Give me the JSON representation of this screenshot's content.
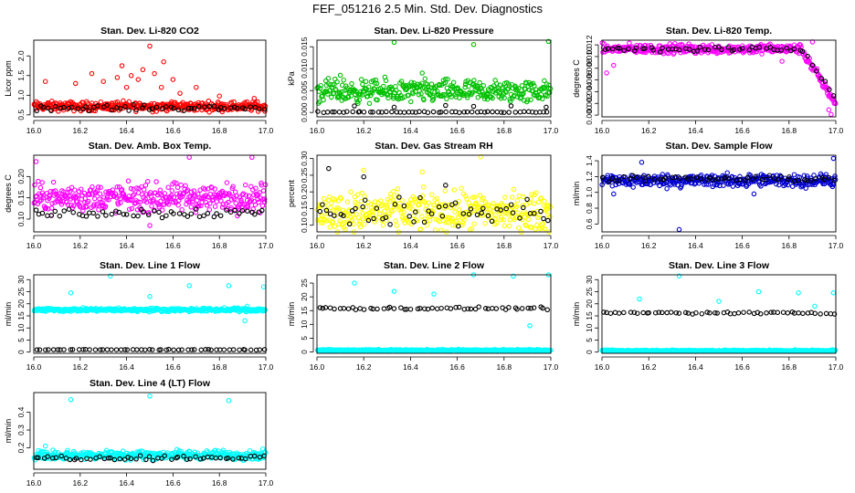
{
  "figure": {
    "title": "FEF_051216  2.5 Min. Std. Dev. Diagnostics"
  },
  "chart_data": [
    {
      "type": "scatter",
      "title": "Stan. Dev. Li-820 CO2",
      "xlabel": "",
      "ylabel": "Licor ppm",
      "xlim": [
        16.0,
        17.0
      ],
      "ylim": [
        0.45,
        2.4
      ],
      "xticks": [
        16.0,
        16.2,
        16.4,
        16.6,
        16.8,
        17.0
      ],
      "yticks": [
        0.5,
        1.0,
        1.5,
        2.0
      ],
      "series": [
        {
          "name": "colored",
          "color": "#ff0000",
          "base": 0.72,
          "spread": 0.1,
          "bias": 0.0,
          "outliers": [
            [
              16.05,
              1.35
            ],
            [
              16.18,
              1.3
            ],
            [
              16.25,
              1.55
            ],
            [
              16.3,
              1.35
            ],
            [
              16.36,
              1.45
            ],
            [
              16.38,
              1.75
            ],
            [
              16.4,
              1.2
            ],
            [
              16.42,
              1.5
            ],
            [
              16.45,
              1.4
            ],
            [
              16.47,
              1.65
            ],
            [
              16.5,
              2.25
            ],
            [
              16.52,
              1.55
            ],
            [
              16.55,
              1.2
            ],
            [
              16.56,
              1.85
            ],
            [
              16.6,
              1.4
            ],
            [
              16.63,
              1.05
            ],
            [
              16.7,
              1.2
            ],
            [
              16.8,
              0.98
            ],
            [
              16.95,
              0.92
            ]
          ]
        },
        {
          "name": "black",
          "color": "#000000",
          "base": 0.68,
          "spread": 0.06,
          "bias": 0.0,
          "outliers": []
        }
      ]
    },
    {
      "type": "scatter",
      "title": "Stan. Dev. Li-820 Pressure",
      "xlabel": "",
      "ylabel": "kPa",
      "xlim": [
        16.0,
        17.0
      ],
      "ylim": [
        -0.001,
        0.0165
      ],
      "xticks": [
        16.0,
        16.2,
        16.4,
        16.6,
        16.8,
        17.0
      ],
      "yticks": [
        0.0,
        0.005,
        0.01,
        0.015
      ],
      "series": [
        {
          "name": "colored",
          "color": "#00c000",
          "base": 0.0048,
          "spread": 0.0022,
          "bias": 0.0,
          "outliers": [
            [
              16.33,
              0.016
            ],
            [
              16.67,
              0.0155
            ],
            [
              16.99,
              0.0162
            ],
            [
              16.1,
              0.0085
            ],
            [
              16.45,
              0.009
            ]
          ]
        },
        {
          "name": "black",
          "color": "#000000",
          "base": 0.0001,
          "spread": 0.0001,
          "bias": 0.0,
          "outliers": [
            [
              16.16,
              0.0015
            ],
            [
              16.33,
              0.0012
            ],
            [
              16.55,
              0.0016
            ],
            [
              16.67,
              0.0014
            ],
            [
              16.83,
              0.0015
            ],
            [
              16.98,
              0.0012
            ]
          ]
        }
      ]
    },
    {
      "type": "scatter",
      "title": "Stan. Dev. Li-820 Temp.",
      "xlabel": "",
      "ylabel": "degrees C",
      "xlim": [
        16.0,
        17.0
      ],
      "ylim": [
        -0.0003,
        0.0128
      ],
      "xticks": [
        16.0,
        16.2,
        16.4,
        16.6,
        16.8,
        17.0
      ],
      "yticks": [
        0.0,
        0.002,
        0.004,
        0.006,
        0.008,
        0.01,
        0.012
      ],
      "series": [
        {
          "name": "colored",
          "color": "#ff00ff",
          "base": 0.0113,
          "spread": 0.0007,
          "bias": 0.0,
          "decayFrom": 16.85,
          "decayTo": 0.002,
          "outliers": [
            [
              16.98,
              0.0001
            ],
            [
              16.97,
              0.0009
            ],
            [
              16.02,
              0.0072
            ],
            [
              16.05,
              0.0085
            ],
            [
              16.77,
              0.0092
            ],
            [
              16.9,
              0.0125
            ]
          ]
        },
        {
          "name": "black",
          "color": "#000000",
          "base": 0.0113,
          "spread": 0.0004,
          "bias": 0.0,
          "decayFrom": 16.85,
          "decayTo": 0.003,
          "outliers": []
        }
      ]
    },
    {
      "type": "scatter",
      "title": "Stan. Dev. Amb. Box Temp.",
      "xlabel": "",
      "ylabel": "degrees C",
      "xlim": [
        16.0,
        17.0
      ],
      "ylim": [
        0.07,
        0.25
      ],
      "xticks": [
        16.0,
        16.2,
        16.4,
        16.6,
        16.8,
        17.0
      ],
      "yticks": [
        0.1,
        0.15,
        0.2
      ],
      "series": [
        {
          "name": "colored",
          "color": "#ff00ff",
          "base": 0.15,
          "spread": 0.028,
          "bias": 0.0,
          "outliers": [
            [
              16.01,
              0.235
            ],
            [
              16.67,
              0.245
            ],
            [
              16.94,
              0.245
            ],
            [
              16.5,
              0.085
            ]
          ]
        },
        {
          "name": "black",
          "color": "#000000",
          "base": 0.115,
          "spread": 0.01,
          "bias": 0.0,
          "outliers": []
        }
      ]
    },
    {
      "type": "scatter",
      "title": "Stan. Dev. Gas Stream RH",
      "xlabel": "",
      "ylabel": "percent",
      "xlim": [
        16.0,
        17.0
      ],
      "ylim": [
        0.08,
        0.31
      ],
      "xticks": [
        16.0,
        16.2,
        16.4,
        16.6,
        16.8,
        17.0
      ],
      "yticks": [
        0.1,
        0.15,
        0.2,
        0.25,
        0.3
      ],
      "series": [
        {
          "name": "colored",
          "color": "#ffff00",
          "base": 0.14,
          "spread": 0.05,
          "bias": 0.0,
          "outliers": [
            [
              16.7,
              0.305
            ],
            [
              16.2,
              0.265
            ],
            [
              16.45,
              0.26
            ]
          ]
        },
        {
          "name": "black",
          "color": "#000000",
          "base": 0.14,
          "spread": 0.035,
          "bias": 0.0,
          "outliers": [
            [
              16.05,
              0.27
            ],
            [
              16.2,
              0.245
            ],
            [
              16.55,
              0.22
            ]
          ]
        }
      ]
    },
    {
      "type": "scatter",
      "title": "Stan. Dev. Sample Flow",
      "xlabel": "",
      "ylabel": "ml/min",
      "xlim": [
        16.0,
        17.0
      ],
      "ylim": [
        0.5,
        1.47
      ],
      "xticks": [
        16.0,
        16.2,
        16.4,
        16.6,
        16.8,
        17.0
      ],
      "yticks": [
        0.6,
        0.8,
        1.0,
        1.2,
        1.4
      ],
      "series": [
        {
          "name": "colored",
          "color": "#0000cc",
          "base": 1.15,
          "spread": 0.07,
          "bias": 0.0,
          "outliers": [
            [
              16.33,
              0.53
            ],
            [
              16.17,
              1.38
            ],
            [
              16.99,
              1.43
            ],
            [
              16.05,
              0.98
            ],
            [
              16.65,
              0.98
            ]
          ]
        },
        {
          "name": "black",
          "color": "#000000",
          "base": 1.17,
          "spread": 0.03,
          "bias": 0.0,
          "outliers": []
        }
      ]
    },
    {
      "type": "scatter",
      "title": "Stan. Dev. Line 1 Flow",
      "xlabel": "",
      "ylabel": "ml/min",
      "xlim": [
        16.0,
        17.0
      ],
      "ylim": [
        -0.5,
        32
      ],
      "xticks": [
        16.0,
        16.2,
        16.4,
        16.6,
        16.8,
        17.0
      ],
      "yticks": [
        0,
        5,
        10,
        15,
        20,
        25,
        30
      ],
      "series": [
        {
          "name": "colored",
          "color": "#00ffff",
          "base": 17.5,
          "spread": 0.6,
          "bias": 0.0,
          "outliers": [
            [
              16.16,
              24.5
            ],
            [
              16.33,
              31.5
            ],
            [
              16.5,
              23
            ],
            [
              16.67,
              27.5
            ],
            [
              16.84,
              27.5
            ],
            [
              16.99,
              27
            ],
            [
              16.91,
              13
            ],
            [
              16.92,
              19
            ]
          ]
        },
        {
          "name": "black",
          "color": "#000000",
          "base": 1.0,
          "spread": 0.1,
          "bias": 0.0,
          "outliers": []
        }
      ]
    },
    {
      "type": "scatter",
      "title": "Stan. Dev. Line 2 Flow",
      "xlabel": "",
      "ylabel": "ml/min",
      "xlim": [
        16.0,
        17.0
      ],
      "ylim": [
        -0.5,
        28
      ],
      "xticks": [
        16.0,
        16.2,
        16.4,
        16.6,
        16.8,
        17.0
      ],
      "yticks": [
        0,
        5,
        10,
        15,
        20,
        25
      ],
      "series": [
        {
          "name": "colored",
          "color": "#00ffff",
          "base": 0.6,
          "spread": 0.25,
          "bias": 0.0,
          "outliers": [
            [
              16.16,
              25
            ],
            [
              16.33,
              22
            ],
            [
              16.5,
              21
            ],
            [
              16.67,
              28
            ],
            [
              16.84,
              27.5
            ],
            [
              16.99,
              28
            ],
            [
              16.91,
              9.5
            ]
          ]
        },
        {
          "name": "black",
          "color": "#000000",
          "base": 15.8,
          "spread": 0.4,
          "bias": 0.0,
          "outliers": []
        }
      ]
    },
    {
      "type": "scatter",
      "title": "Stan. Dev. Line 3 Flow",
      "xlabel": "",
      "ylabel": "ml/min",
      "xlim": [
        16.0,
        17.0
      ],
      "ylim": [
        -0.5,
        32
      ],
      "xticks": [
        16.0,
        16.2,
        16.4,
        16.6,
        16.8,
        17.0
      ],
      "yticks": [
        0,
        5,
        10,
        15,
        20,
        25,
        30
      ],
      "series": [
        {
          "name": "colored",
          "color": "#00ffff",
          "base": 0.6,
          "spread": 0.25,
          "bias": 0.0,
          "outliers": [
            [
              16.16,
              22
            ],
            [
              16.33,
              31.5
            ],
            [
              16.5,
              21
            ],
            [
              16.67,
              25
            ],
            [
              16.84,
              24.5
            ],
            [
              16.99,
              24.5
            ],
            [
              16.91,
              19
            ]
          ]
        },
        {
          "name": "black",
          "color": "#000000",
          "base": 16.2,
          "spread": 0.4,
          "bias": 0.0,
          "outliers": []
        }
      ]
    },
    {
      "type": "scatter",
      "title": "Stan. Dev. Line 4 (LT) Flow",
      "xlabel": "",
      "ylabel": "ml/min",
      "xlim": [
        16.0,
        17.0
      ],
      "ylim": [
        0.08,
        0.51
      ],
      "xticks": [
        16.0,
        16.2,
        16.4,
        16.6,
        16.8,
        17.0
      ],
      "yticks": [
        0.2,
        0.3,
        0.4
      ],
      "series": [
        {
          "name": "colored",
          "color": "#00ffff",
          "base": 0.16,
          "spread": 0.022,
          "bias": 0.0,
          "outliers": [
            [
              16.16,
              0.47
            ],
            [
              16.5,
              0.49
            ],
            [
              16.84,
              0.465
            ],
            [
              16.05,
              0.21
            ]
          ]
        },
        {
          "name": "black",
          "color": "#000000",
          "base": 0.145,
          "spread": 0.012,
          "bias": 0.0,
          "outliers": []
        }
      ]
    }
  ]
}
